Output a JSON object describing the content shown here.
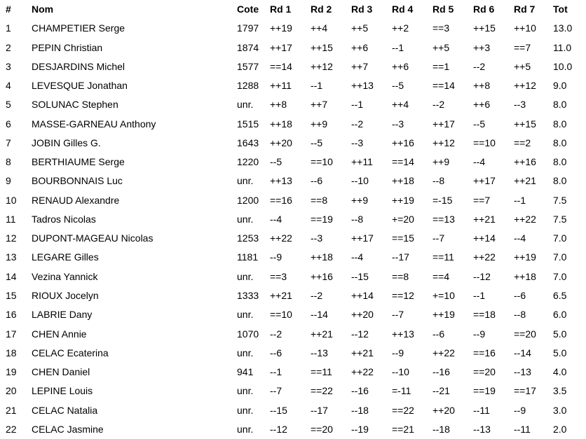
{
  "colors": {
    "background": "#ffffff",
    "text": "#000000"
  },
  "table": {
    "headers": [
      "#",
      "Nom",
      "Cote",
      "Rd 1",
      "Rd 2",
      "Rd 3",
      "Rd 4",
      "Rd 5",
      "Rd 6",
      "Rd 7",
      "Tot"
    ],
    "rows": [
      [
        "1",
        "CHAMPETIER Serge",
        "1797",
        "++19",
        "++4",
        "++5",
        "++2",
        "==3",
        "++15",
        "++10",
        "13.0"
      ],
      [
        "2",
        "PEPIN Christian",
        "1874",
        "++17",
        "++15",
        "++6",
        "--1",
        "++5",
        "++3",
        "==7",
        "11.0"
      ],
      [
        "3",
        "DESJARDINS Michel",
        "1577",
        "==14",
        "++12",
        "++7",
        "++6",
        "==1",
        "--2",
        "++5",
        "10.0"
      ],
      [
        "4",
        "LEVESQUE Jonathan",
        "1288",
        "++11",
        "--1",
        "++13",
        "--5",
        "==14",
        "++8",
        "++12",
        "9.0"
      ],
      [
        "5",
        "SOLUNAC Stephen",
        "unr.",
        "++8",
        "++7",
        "--1",
        "++4",
        "--2",
        "++6",
        "--3",
        "8.0"
      ],
      [
        "6",
        "MASSE-GARNEAU Anthony",
        "1515",
        "++18",
        "++9",
        "--2",
        "--3",
        "++17",
        "--5",
        "++15",
        "8.0"
      ],
      [
        "7",
        "JOBIN Gilles G.",
        "1643",
        "++20",
        "--5",
        "--3",
        "++16",
        "++12",
        "==10",
        "==2",
        "8.0"
      ],
      [
        "8",
        "BERTHIAUME Serge",
        "1220",
        "--5",
        "==10",
        "++11",
        "==14",
        "++9",
        "--4",
        "++16",
        "8.0"
      ],
      [
        "9",
        "BOURBONNAIS Luc",
        "unr.",
        "++13",
        "--6",
        "--10",
        "++18",
        "--8",
        "++17",
        "++21",
        "8.0"
      ],
      [
        "10",
        "RENAUD Alexandre",
        "1200",
        "==16",
        "==8",
        "++9",
        "++19",
        "=-15",
        "==7",
        "--1",
        "7.5"
      ],
      [
        "11",
        "Tadros Nicolas",
        "unr.",
        "--4",
        "==19",
        "--8",
        "+=20",
        "==13",
        "++21",
        "++22",
        "7.5"
      ],
      [
        "12",
        "DUPONT-MAGEAU Nicolas",
        "1253",
        "++22",
        "--3",
        "++17",
        "==15",
        "--7",
        "++14",
        "--4",
        "7.0"
      ],
      [
        "13",
        "LEGARE Gilles",
        "1181",
        "--9",
        "++18",
        "--4",
        "--17",
        "==11",
        "++22",
        "++19",
        "7.0"
      ],
      [
        "14",
        "Vezina Yannick",
        "unr.",
        "==3",
        "++16",
        "--15",
        "==8",
        "==4",
        "--12",
        "++18",
        "7.0"
      ],
      [
        "15",
        "RIOUX Jocelyn",
        "1333",
        "++21",
        "--2",
        "++14",
        "==12",
        "+=10",
        "--1",
        "--6",
        "6.5"
      ],
      [
        "16",
        "LABRIE Dany",
        "unr.",
        "==10",
        "--14",
        "++20",
        "--7",
        "++19",
        "==18",
        "--8",
        "6.0"
      ],
      [
        "17",
        "CHEN Annie",
        "1070",
        "--2",
        "++21",
        "--12",
        "++13",
        "--6",
        "--9",
        "==20",
        "5.0"
      ],
      [
        "18",
        "CELAC Ecaterina",
        "unr.",
        "--6",
        "--13",
        "++21",
        "--9",
        "++22",
        "==16",
        "--14",
        "5.0"
      ],
      [
        "19",
        "CHEN Daniel",
        "941",
        "--1",
        "==11",
        "++22",
        "--10",
        "--16",
        "==20",
        "--13",
        "4.0"
      ],
      [
        "20",
        "LEPINE Louis",
        "unr.",
        "--7",
        "==22",
        "--16",
        "=-11",
        "--21",
        "==19",
        "==17",
        "3.5"
      ],
      [
        "21",
        "CELAC Natalia",
        "unr.",
        "--15",
        "--17",
        "--18",
        "==22",
        "++20",
        "--11",
        "--9",
        "3.0"
      ],
      [
        "22",
        "CELAC Jasmine",
        "unr.",
        "--12",
        "==20",
        "--19",
        "==21",
        "--18",
        "--13",
        "--11",
        "2.0"
      ]
    ]
  }
}
